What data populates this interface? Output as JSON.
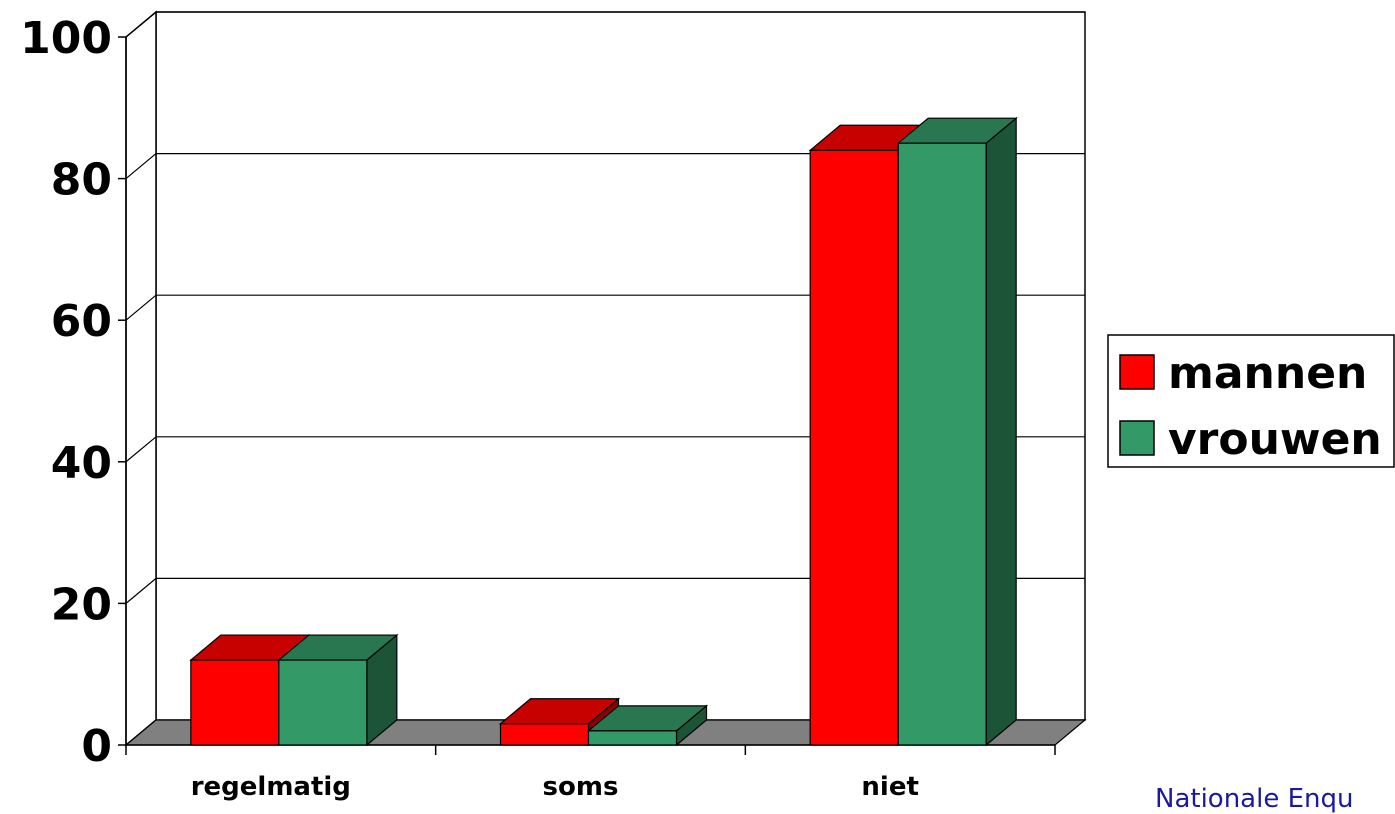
{
  "chart_data": {
    "type": "bar",
    "three_d": true,
    "categories": [
      "regelmatig",
      "soms",
      "niet"
    ],
    "series": [
      {
        "name": "mannen",
        "color": "#ff0000",
        "values": [
          12,
          3,
          84
        ]
      },
      {
        "name": "vrouwen",
        "color": "#339966",
        "values": [
          12,
          2,
          85
        ]
      }
    ],
    "ylim": [
      0,
      100
    ],
    "yticks": [
      0,
      20,
      40,
      60,
      80,
      100
    ],
    "grid": true,
    "legend": "right"
  },
  "source_text": "Nationale Enqu"
}
